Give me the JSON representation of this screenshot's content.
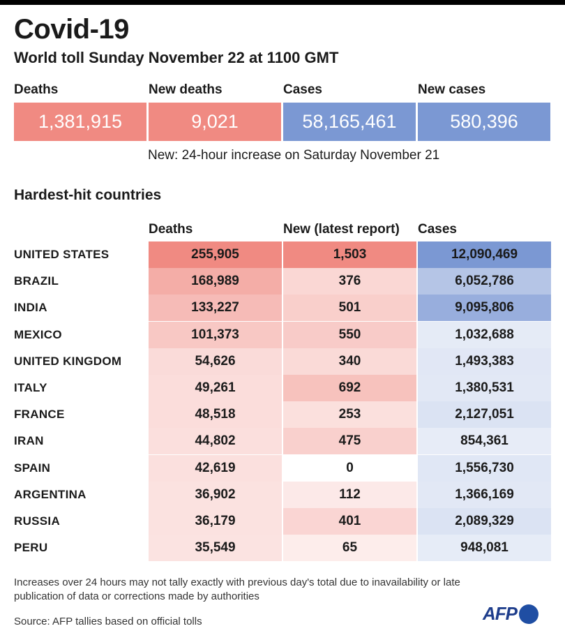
{
  "header": {
    "title": "Covid-19",
    "subtitle": "World toll Sunday November 22 at 1100 GMT"
  },
  "summary": [
    {
      "label": "Deaths",
      "value": "1,381,915",
      "color": "#f08a82"
    },
    {
      "label": "New deaths",
      "value": "9,021",
      "color": "#f08a82"
    },
    {
      "label": "Cases",
      "value": "58,165,461",
      "color": "#7b98d3"
    },
    {
      "label": "New cases",
      "value": "580,396",
      "color": "#7b98d3"
    }
  ],
  "note": "New: 24-hour increase on Saturday November 21",
  "chart_data": {
    "type": "table",
    "title": "Hardest-hit countries",
    "columns": [
      "Deaths",
      "New (latest report)",
      "Cases"
    ],
    "rows": [
      {
        "country": "UNITED STATES",
        "deaths": 255905,
        "new": 1503,
        "cases": 12090469,
        "deaths_text": "255,905",
        "new_text": "1,503",
        "cases_text": "12,090,469"
      },
      {
        "country": "BRAZIL",
        "deaths": 168989,
        "new": 376,
        "cases": 6052786,
        "deaths_text": "168,989",
        "new_text": "376",
        "cases_text": "6,052,786"
      },
      {
        "country": "INDIA",
        "deaths": 133227,
        "new": 501,
        "cases": 9095806,
        "deaths_text": "133,227",
        "new_text": "501",
        "cases_text": "9,095,806"
      },
      {
        "country": "MEXICO",
        "deaths": 101373,
        "new": 550,
        "cases": 1032688,
        "deaths_text": "101,373",
        "new_text": "550",
        "cases_text": "1,032,688"
      },
      {
        "country": "UNITED KINGDOM",
        "deaths": 54626,
        "new": 340,
        "cases": 1493383,
        "deaths_text": "54,626",
        "new_text": "340",
        "cases_text": "1,493,383"
      },
      {
        "country": "ITALY",
        "deaths": 49261,
        "new": 692,
        "cases": 1380531,
        "deaths_text": "49,261",
        "new_text": "692",
        "cases_text": "1,380,531"
      },
      {
        "country": "FRANCE",
        "deaths": 48518,
        "new": 253,
        "cases": 2127051,
        "deaths_text": "48,518",
        "new_text": "253",
        "cases_text": "2,127,051"
      },
      {
        "country": "IRAN",
        "deaths": 44802,
        "new": 475,
        "cases": 854361,
        "deaths_text": "44,802",
        "new_text": "475",
        "cases_text": "854,361"
      },
      {
        "country": "SPAIN",
        "deaths": 42619,
        "new": 0,
        "cases": 1556730,
        "deaths_text": "42,619",
        "new_text": "0",
        "cases_text": "1,556,730"
      },
      {
        "country": "ARGENTINA",
        "deaths": 36902,
        "new": 112,
        "cases": 1366169,
        "deaths_text": "36,902",
        "new_text": "112",
        "cases_text": "1,366,169"
      },
      {
        "country": "RUSSIA",
        "deaths": 36179,
        "new": 401,
        "cases": 2089329,
        "deaths_text": "36,179",
        "new_text": "401",
        "cases_text": "2,089,329"
      },
      {
        "country": "PERU",
        "deaths": 35549,
        "new": 65,
        "cases": 948081,
        "deaths_text": "35,549",
        "new_text": "65",
        "cases_text": "948,081"
      }
    ]
  },
  "colors": {
    "red": "#f08a82",
    "blue": "#7b98d3",
    "red_light": "#fdeeec",
    "blue_light": "#eef2f9"
  },
  "footnote": "Increases over 24 hours may not tally exactly with previous day's total due to inavailability or late publication of data or corrections made by authorities",
  "source": "Source: AFP tallies based on official tolls",
  "logo_text": "AFP"
}
